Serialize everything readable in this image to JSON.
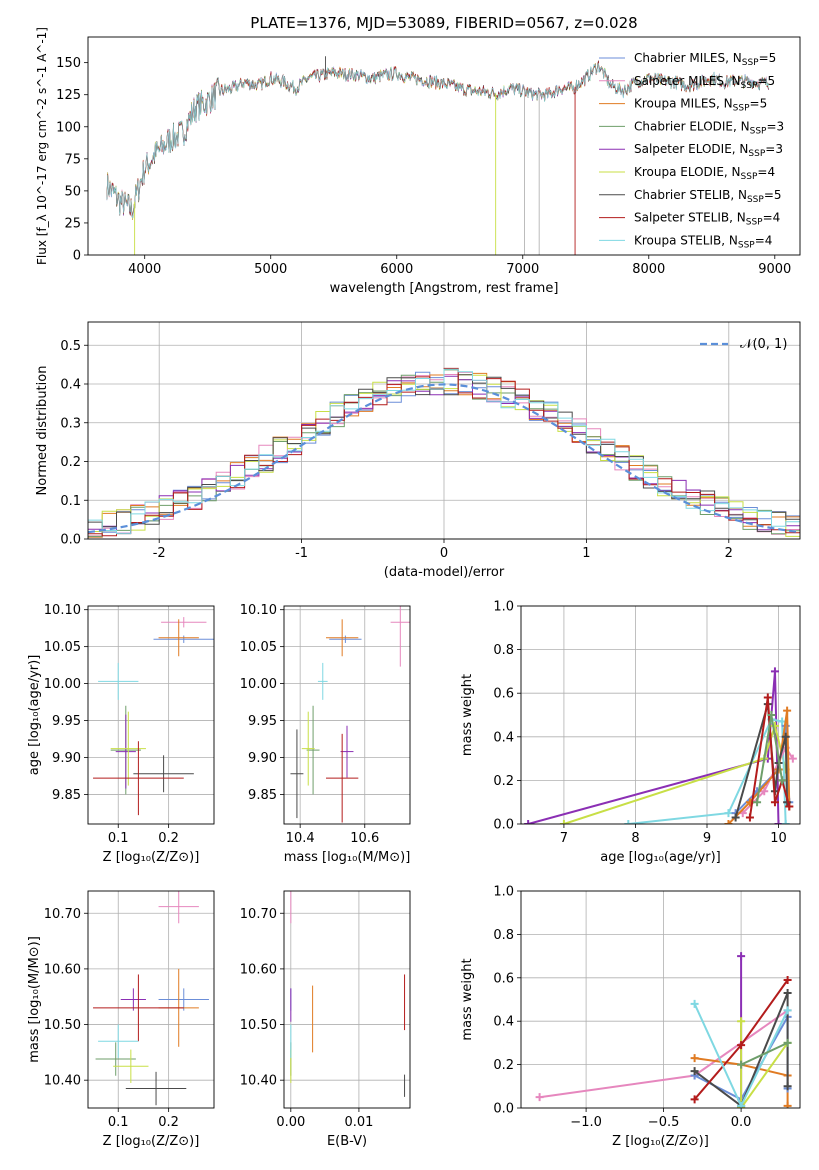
{
  "figure": {
    "title": "PLATE=1376, MJD=53089, FIBERID=0567, z=0.028"
  },
  "models": [
    {
      "key": "chab_miles",
      "label": "Chabrier MILES, N_SSP=5",
      "color": "#6b8ed8"
    },
    {
      "key": "salp_miles",
      "label": "Salpeter MILES, N_SSP=5",
      "color": "#e687be"
    },
    {
      "key": "krou_miles",
      "label": "Kroupa MILES, N_SSP=5",
      "color": "#e07b23"
    },
    {
      "key": "chab_elodie",
      "label": "Chabrier ELODIE, N_SSP=3",
      "color": "#6e9e6a"
    },
    {
      "key": "salp_elodie",
      "label": "Salpeter ELODIE, N_SSP=3",
      "color": "#8b2fb4"
    },
    {
      "key": "krou_elodie",
      "label": "Kroupa ELODIE, N_SSP=4",
      "color": "#c8df46"
    },
    {
      "key": "chab_stelib",
      "label": "Chabrier STELIB, N_SSP=5",
      "color": "#4a4a4a"
    },
    {
      "key": "salp_stelib",
      "label": "Salpeter STELIB, N_SSP=4",
      "color": "#b31c1c"
    },
    {
      "key": "krou_stelib",
      "label": "Kroupa STELIB, N_SSP=4",
      "color": "#7fd8e2"
    }
  ],
  "chart_data": [
    {
      "id": "spectrum",
      "type": "line",
      "xlabel": "wavelength [Angstrom, rest frame]",
      "ylabel": "Flux [f_λ 10^-17 erg cm^-2 s^-1 A^-1]",
      "xlim": [
        3550,
        9200
      ],
      "ylim": [
        0,
        170
      ],
      "xticks": [
        4000,
        5000,
        6000,
        7000,
        8000,
        9000
      ],
      "yticks": [
        0,
        25,
        50,
        75,
        100,
        125,
        150
      ],
      "grid": false,
      "legend": "right",
      "x": [
        3700,
        3800,
        3900,
        4000,
        4100,
        4200,
        4300,
        4400,
        4500,
        4600,
        4700,
        4800,
        4900,
        5000,
        5100,
        5200,
        5300,
        5400,
        5500,
        5600,
        5700,
        5800,
        5900,
        6000,
        6100,
        6200,
        6300,
        6400,
        6500,
        6600,
        6700,
        6800,
        6900,
        7000,
        7100,
        7200,
        7300,
        7400,
        7500,
        7600,
        7700,
        7800,
        7900,
        8000,
        8100,
        8200,
        8300,
        8400,
        8500,
        8600,
        8700,
        8800,
        8900
      ],
      "y": [
        55,
        42,
        35,
        68,
        80,
        90,
        95,
        115,
        120,
        128,
        130,
        135,
        132,
        138,
        135,
        130,
        138,
        140,
        142,
        141,
        140,
        138,
        140,
        142,
        138,
        137,
        135,
        133,
        130,
        128,
        127,
        126,
        130,
        128,
        125,
        125,
        130,
        130,
        138,
        148,
        132,
        128,
        135,
        138,
        136,
        135,
        132,
        134,
        138,
        135,
        136,
        135,
        134
      ],
      "dips": [
        {
          "x": 3920,
          "y": 0
        },
        {
          "x": 6785,
          "y": 0
        },
        {
          "x": 7415,
          "y": 0
        },
        {
          "x": 5435,
          "y": 155
        }
      ]
    },
    {
      "id": "residuals",
      "type": "histogram",
      "xlabel": "(data-model)/error",
      "ylabel": "Normed distribution",
      "xlim": [
        -2.5,
        2.5
      ],
      "ylim": [
        0,
        0.56
      ],
      "xticks": [
        -2,
        -1,
        0,
        1,
        2
      ],
      "yticks": [
        0.0,
        0.1,
        0.2,
        0.3,
        0.4,
        0.5
      ],
      "grid": true,
      "legend": "top-right",
      "reference": {
        "label": "𝒩(0, 1)",
        "color": "#5b8fd9",
        "mu": 0,
        "sigma": 1
      },
      "bins": {
        "start": -2.5,
        "width": 0.1,
        "count": 50
      }
    },
    {
      "id": "age_vs_Z",
      "type": "scatter",
      "xlabel": "Z [log10(Z/Z⊙)]",
      "ylabel": "age [log10(age/yr)]",
      "xlim": [
        0.04,
        0.29
      ],
      "ylim": [
        9.81,
        10.105
      ],
      "xticks": [
        0.1,
        0.2
      ],
      "xticklabels": [
        "0.1",
        "0.2"
      ],
      "yticks": [
        9.85,
        9.9,
        9.95,
        10.0,
        10.05,
        10.1
      ],
      "grid": true,
      "points": [
        {
          "model": "chab_miles",
          "x": 0.23,
          "y": 10.06,
          "xe": 0.06,
          "ye": 0.005
        },
        {
          "model": "salp_miles",
          "x": 0.23,
          "y": 10.083,
          "xe": 0.045,
          "ye": 0.007
        },
        {
          "model": "krou_miles",
          "x": 0.22,
          "y": 10.062,
          "xe": 0.04,
          "ye": 0.025
        },
        {
          "model": "chab_elodie",
          "x": 0.115,
          "y": 9.91,
          "xe": 0.03,
          "ye": 0.06
        },
        {
          "model": "salp_elodie",
          "x": 0.115,
          "y": 9.908,
          "xe": 0.02,
          "ye": 0.05
        },
        {
          "model": "krou_elodie",
          "x": 0.12,
          "y": 9.912,
          "xe": 0.035,
          "ye": 0.05
        },
        {
          "model": "chab_stelib",
          "x": 0.19,
          "y": 9.878,
          "xe": 0.06,
          "ye": 0.025
        },
        {
          "model": "salp_stelib",
          "x": 0.14,
          "y": 9.872,
          "xe": 0.09,
          "ye": 0.05
        },
        {
          "model": "krou_stelib",
          "x": 0.1,
          "y": 10.003,
          "xe": 0.04,
          "ye": 0.025
        }
      ]
    },
    {
      "id": "age_vs_mass",
      "type": "scatter",
      "xlabel": "mass [log10(M/M⊙)]",
      "ylabel": "",
      "xlim": [
        10.35,
        10.74
      ],
      "ylim": [
        9.81,
        10.105
      ],
      "xticks": [
        10.4,
        10.6
      ],
      "xticklabels": [
        "10.4",
        "10.6"
      ],
      "yticks": [
        9.85,
        9.9,
        9.95,
        10.0,
        10.05,
        10.1
      ],
      "grid": true,
      "points": [
        {
          "model": "chab_miles",
          "x": 10.54,
          "y": 10.06,
          "xe": 0.05,
          "ye": 0.005
        },
        {
          "model": "salp_miles",
          "x": 10.71,
          "y": 10.083,
          "xe": 0.03,
          "ye": 0.06
        },
        {
          "model": "krou_miles",
          "x": 10.53,
          "y": 10.062,
          "xe": 0.05,
          "ye": 0.025
        },
        {
          "model": "chab_elodie",
          "x": 10.44,
          "y": 9.91,
          "xe": 0.02,
          "ye": 0.06
        },
        {
          "model": "salp_elodie",
          "x": 10.545,
          "y": 9.908,
          "xe": 0.02,
          "ye": 0.035
        },
        {
          "model": "krou_elodie",
          "x": 10.425,
          "y": 9.912,
          "xe": 0.02,
          "ye": 0.05
        },
        {
          "model": "chab_stelib",
          "x": 10.39,
          "y": 9.878,
          "xe": 0.02,
          "ye": 0.06
        },
        {
          "model": "salp_stelib",
          "x": 10.53,
          "y": 9.872,
          "xe": 0.05,
          "ye": 0.06
        },
        {
          "model": "krou_stelib",
          "x": 10.47,
          "y": 10.003,
          "xe": 0.015,
          "ye": 0.025
        }
      ]
    },
    {
      "id": "weight_vs_age",
      "type": "line",
      "xlabel": "age  [log10(age/yr)]",
      "ylabel": "mass weight",
      "xlim": [
        6.4,
        10.3
      ],
      "ylim": [
        0,
        1.0
      ],
      "xticks": [
        7,
        8,
        9,
        10
      ],
      "yticks": [
        0.0,
        0.2,
        0.4,
        0.6,
        0.8,
        1.0
      ],
      "grid": true,
      "series": [
        {
          "model": "salp_elodie",
          "points": [
            [
              6.5,
              0.0
            ],
            [
              9.85,
              0.3
            ],
            [
              9.95,
              0.7
            ],
            [
              10.0,
              0.0
            ]
          ]
        },
        {
          "model": "krou_elodie",
          "points": [
            [
              7.0,
              0.0
            ],
            [
              9.8,
              0.3
            ],
            [
              9.95,
              0.45
            ],
            [
              10.1,
              0.25
            ]
          ]
        },
        {
          "model": "krou_stelib",
          "points": [
            [
              7.9,
              0.0
            ],
            [
              9.3,
              0.05
            ],
            [
              9.9,
              0.48
            ],
            [
              10.05,
              0.47
            ],
            [
              10.1,
              0.0
            ]
          ]
        },
        {
          "model": "chab_miles",
          "points": [
            [
              9.4,
              0.05
            ],
            [
              9.7,
              0.15
            ],
            [
              10.0,
              0.25
            ],
            [
              10.1,
              0.45
            ],
            [
              10.15,
              0.1
            ]
          ]
        },
        {
          "model": "salp_miles",
          "points": [
            [
              9.5,
              0.05
            ],
            [
              9.8,
              0.15
            ],
            [
              10.1,
              0.35
            ],
            [
              10.2,
              0.3
            ]
          ]
        },
        {
          "model": "krou_miles",
          "points": [
            [
              9.3,
              0.0
            ],
            [
              9.6,
              0.1
            ],
            [
              10.0,
              0.25
            ],
            [
              10.12,
              0.52
            ],
            [
              10.15,
              0.08
            ]
          ]
        },
        {
          "model": "chab_stelib",
          "points": [
            [
              9.4,
              0.03
            ],
            [
              9.85,
              0.55
            ],
            [
              9.95,
              0.15
            ],
            [
              10.0,
              0.28
            ],
            [
              10.1,
              0.4
            ],
            [
              10.12,
              0.1
            ]
          ]
        },
        {
          "model": "salp_stelib",
          "points": [
            [
              9.6,
              0.03
            ],
            [
              9.85,
              0.58
            ],
            [
              9.95,
              0.1
            ],
            [
              10.05,
              0.2
            ],
            [
              10.15,
              0.08
            ]
          ]
        },
        {
          "model": "chab_elodie",
          "points": [
            [
              9.7,
              0.1
            ],
            [
              9.9,
              0.5
            ],
            [
              10.05,
              0.2
            ]
          ]
        }
      ]
    },
    {
      "id": "mass_vs_Z",
      "type": "scatter",
      "xlabel": "Z [log10(Z/Z⊙)]",
      "ylabel": "mass [log10(M/M⊙)]",
      "xlim": [
        0.04,
        0.29
      ],
      "ylim": [
        10.35,
        10.74
      ],
      "xticks": [
        0.1,
        0.2
      ],
      "xticklabels": [
        "0.1",
        "0.2"
      ],
      "yticks": [
        10.4,
        10.5,
        10.6,
        10.7
      ],
      "grid": true,
      "points": [
        {
          "model": "chab_miles",
          "x": 0.23,
          "y": 10.545,
          "xe": 0.05,
          "ye": 0.02
        },
        {
          "model": "salp_miles",
          "x": 0.22,
          "y": 10.712,
          "xe": 0.04,
          "ye": 0.03
        },
        {
          "model": "krou_miles",
          "x": 0.22,
          "y": 10.53,
          "xe": 0.04,
          "ye": 0.07
        },
        {
          "model": "chab_elodie",
          "x": 0.095,
          "y": 10.438,
          "xe": 0.04,
          "ye": 0.03
        },
        {
          "model": "salp_elodie",
          "x": 0.13,
          "y": 10.545,
          "xe": 0.025,
          "ye": 0.02
        },
        {
          "model": "krou_elodie",
          "x": 0.125,
          "y": 10.425,
          "xe": 0.035,
          "ye": 0.03
        },
        {
          "model": "chab_stelib",
          "x": 0.175,
          "y": 10.385,
          "xe": 0.06,
          "ye": 0.03
        },
        {
          "model": "salp_stelib",
          "x": 0.14,
          "y": 10.53,
          "xe": 0.09,
          "ye": 0.06
        },
        {
          "model": "krou_stelib",
          "x": 0.1,
          "y": 10.47,
          "xe": 0.04,
          "ye": 0.03
        }
      ]
    },
    {
      "id": "mass_vs_ebv",
      "type": "scatter",
      "xlabel": "E(B-V)",
      "ylabel": "",
      "xlim": [
        -0.001,
        0.0175
      ],
      "ylim": [
        10.35,
        10.74
      ],
      "xticks": [
        0.0,
        0.01
      ],
      "xticklabels": [
        "0.00",
        "0.01"
      ],
      "yticks": [
        10.4,
        10.5,
        10.6,
        10.7
      ],
      "grid": true,
      "points": [
        {
          "model": "chab_miles",
          "x": 0.0,
          "y": 10.545,
          "xe": 0,
          "ye": 0.02
        },
        {
          "model": "salp_miles",
          "x": 0.0,
          "y": 10.712,
          "xe": 0,
          "ye": 0.03
        },
        {
          "model": "krou_miles",
          "x": 0.0032,
          "y": 10.51,
          "xe": 0,
          "ye": 0.06
        },
        {
          "model": "chab_elodie",
          "x": 0.0,
          "y": 10.438,
          "xe": 0,
          "ye": 0.03
        },
        {
          "model": "salp_elodie",
          "x": 0.0,
          "y": 10.535,
          "xe": 0,
          "ye": 0.03
        },
        {
          "model": "krou_elodie",
          "x": 0.0,
          "y": 10.425,
          "xe": 0,
          "ye": 0.03
        },
        {
          "model": "chab_stelib",
          "x": 0.0167,
          "y": 10.39,
          "xe": 0,
          "ye": 0.02
        },
        {
          "model": "salp_stelib",
          "x": 0.0167,
          "y": 10.54,
          "xe": 0,
          "ye": 0.05
        },
        {
          "model": "krou_stelib",
          "x": 0.0,
          "y": 10.47,
          "xe": 0,
          "ye": 0.03
        }
      ]
    },
    {
      "id": "weight_vs_Z",
      "type": "line",
      "xlabel": "Z [log10(Z/Z⊙)]",
      "ylabel": "mass weight",
      "xlim": [
        -1.42,
        0.38
      ],
      "ylim": [
        0,
        1.0
      ],
      "xticks": [
        -1.0,
        -0.5,
        0.0
      ],
      "xticklabels": [
        "−1.0",
        "−0.5",
        "0.0"
      ],
      "yticks": [
        0.0,
        0.2,
        0.4,
        0.6,
        0.8,
        1.0
      ],
      "grid": true,
      "series": [
        {
          "model": "salp_miles",
          "points": [
            [
              -1.3,
              0.05
            ],
            [
              -0.3,
              0.15
            ],
            [
              0.3,
              0.45
            ]
          ]
        },
        {
          "model": "krou_miles",
          "points": [
            [
              -0.3,
              0.23
            ],
            [
              0.0,
              0.2
            ],
            [
              0.3,
              0.15
            ],
            [
              0.3,
              0.01
            ]
          ]
        },
        {
          "model": "chab_miles",
          "points": [
            [
              -0.3,
              0.15
            ],
            [
              0.0,
              0.04
            ],
            [
              0.3,
              0.42
            ],
            [
              0.3,
              0.09
            ]
          ]
        },
        {
          "model": "salp_elodie",
          "points": [
            [
              0.0,
              0.7
            ],
            [
              0.0,
              0.0
            ]
          ]
        },
        {
          "model": "krou_elodie",
          "points": [
            [
              0.0,
              0.4
            ],
            [
              0.0,
              0.0
            ],
            [
              0.3,
              0.3
            ]
          ]
        },
        {
          "model": "chab_stelib",
          "points": [
            [
              -0.3,
              0.17
            ],
            [
              0.0,
              0.01
            ],
            [
              0.3,
              0.53
            ],
            [
              0.3,
              0.1
            ]
          ]
        },
        {
          "model": "salp_stelib",
          "points": [
            [
              -0.3,
              0.04
            ],
            [
              0.0,
              0.29
            ],
            [
              0.3,
              0.59
            ]
          ]
        },
        {
          "model": "krou_stelib",
          "points": [
            [
              -0.3,
              0.48
            ],
            [
              0.0,
              0.01
            ],
            [
              0.3,
              0.45
            ]
          ]
        },
        {
          "model": "chab_elodie",
          "points": [
            [
              0.0,
              0.2
            ],
            [
              0.3,
              0.3
            ]
          ]
        }
      ]
    }
  ]
}
